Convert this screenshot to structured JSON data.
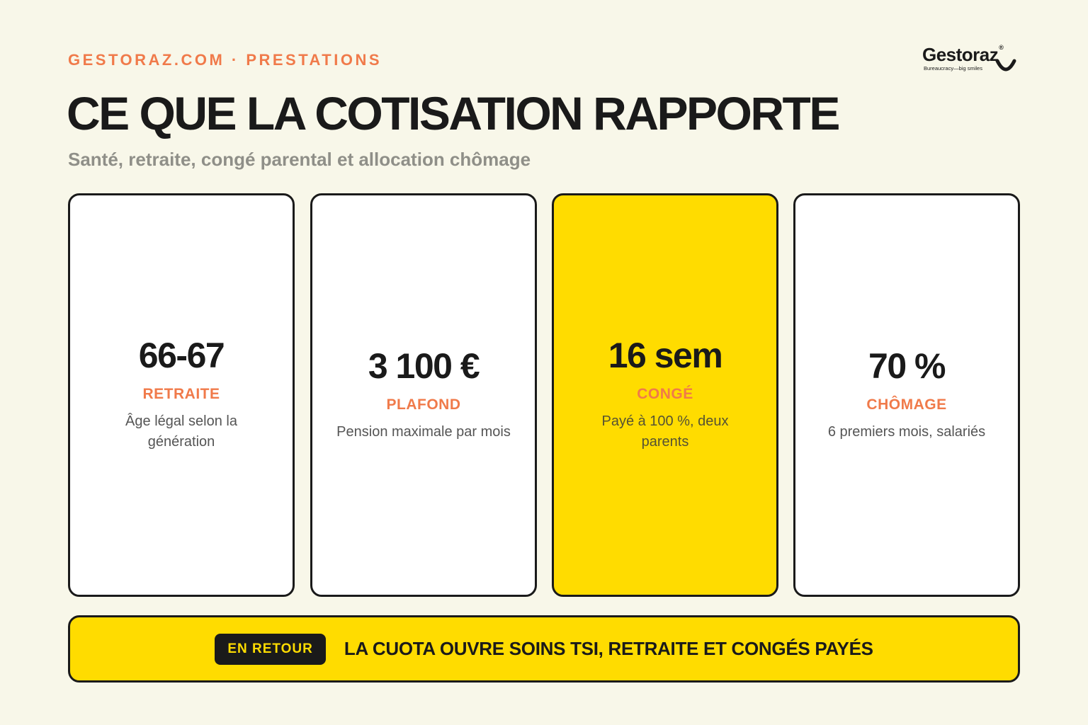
{
  "header": {
    "eyebrow": "GESTORAZ.COM · PRESTATIONS",
    "title": "CE QUE LA COTISATION RAPPORTE",
    "subtitle": "Santé, retraite, congé parental et allocation chômage"
  },
  "logo": {
    "wordmark": "Gestoraz",
    "registered": "®",
    "tagline": "Bureaucracy—big smiles",
    "icon": "smile-icon"
  },
  "cards": [
    {
      "value": "66-67",
      "label": "RETRAITE",
      "desc": "Âge légal selon la génération",
      "highlight": false
    },
    {
      "value": "3 100 €",
      "label": "PLAFOND",
      "desc": "Pension maximale par mois",
      "highlight": false
    },
    {
      "value": "16 sem",
      "label": "CONGÉ",
      "desc": "Payé à 100 %, deux parents",
      "highlight": true
    },
    {
      "value": "70 %",
      "label": "CHÔMAGE",
      "desc": "6 premiers mois, salariés",
      "highlight": false
    }
  ],
  "banner": {
    "badge": "EN RETOUR",
    "text": "LA CUOTA OUVRE SOINS TSI, RETRAITE ET CONGÉS PAYÉS"
  },
  "colors": {
    "background": "#f8f7e9",
    "accent_orange": "#f07a4a",
    "accent_yellow": "#ffdc00",
    "ink": "#1a1a1a",
    "muted": "#8f8f88"
  }
}
